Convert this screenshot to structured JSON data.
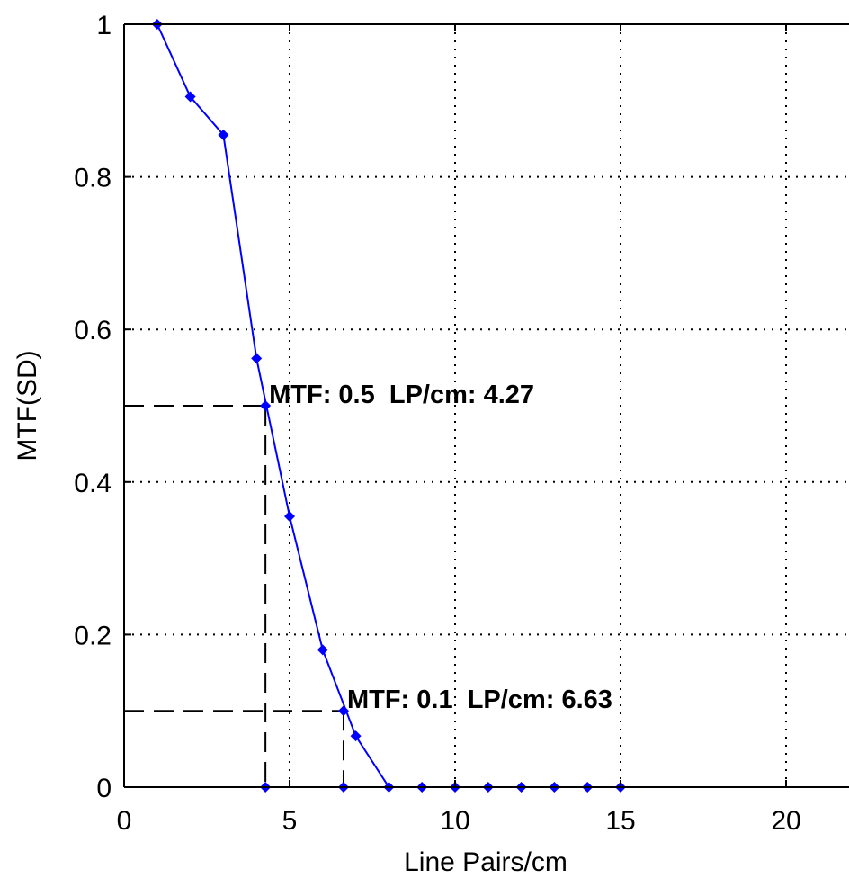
{
  "chart_data": {
    "type": "line",
    "title": "",
    "xlabel": "Line Pairs/cm",
    "ylabel": "MTF(SD)",
    "xlim": [
      0,
      22
    ],
    "ylim": [
      0,
      1
    ],
    "grid": true,
    "x_ticks": [
      0,
      5,
      10,
      15,
      20
    ],
    "x_tick_labels": [
      "0",
      "5",
      "10",
      "15",
      "20"
    ],
    "y_ticks": [
      0,
      0.2,
      0.4,
      0.6,
      0.8,
      1
    ],
    "y_tick_labels": [
      "0",
      "0.2",
      "0.4",
      "0.6",
      "0.8",
      "1"
    ],
    "series": [
      {
        "color": "#0000ff",
        "marker": "diamond",
        "x": [
          1,
          2,
          3,
          4,
          5,
          6,
          7,
          8,
          9,
          10,
          11,
          12,
          13,
          14,
          15
        ],
        "y": [
          1.0,
          0.905,
          0.855,
          0.562,
          0.355,
          0.18,
          0.067,
          0,
          0,
          0,
          0,
          0,
          0,
          0,
          0
        ]
      }
    ],
    "annotations": [
      {
        "text": "MTF: 0.5  LP/cm: 4.27",
        "x": 4.27,
        "y": 0.5
      },
      {
        "text": "MTF: 0.1  LP/cm: 6.63",
        "x": 6.63,
        "y": 0.1
      }
    ]
  }
}
